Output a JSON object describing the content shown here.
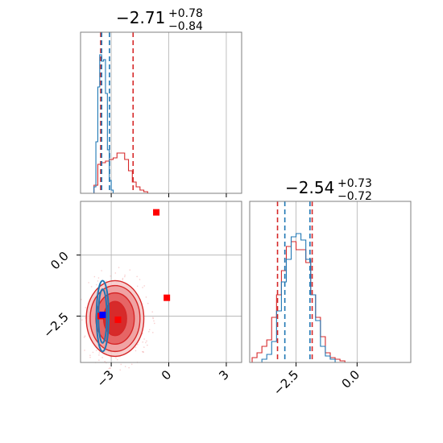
{
  "chart_data": {
    "type": "corner",
    "parameters": 2,
    "colors": {
      "red": "#d62728",
      "blue": "#1f77b4",
      "grid": "#b0b0b0",
      "truth_red": "#ff0000",
      "truth_blue": "#0000ff"
    },
    "x_ticks": {
      "p0": [
        "−3",
        "0",
        "3"
      ],
      "p1": [
        "−2.5",
        "0.0"
      ]
    },
    "y_ticks": {
      "p1": [
        "0.0",
        "−2.5"
      ]
    },
    "axis_ranges": {
      "p0": [
        -4.6,
        3.8
      ],
      "p1": [
        -4.4,
        2.2
      ]
    },
    "titles": [
      {
        "param": "p0",
        "median": "−2.71",
        "plus": "+0.78",
        "minus": "−0.84"
      },
      {
        "param": "p1",
        "median": "−2.54",
        "plus": "+0.73",
        "minus": "−0.72"
      }
    ],
    "quantile_lines": {
      "p0_red": [
        -3.55,
        -1.86
      ],
      "p0_blue": [
        -3.5,
        -3.09
      ],
      "p1_red": [
        -3.26,
        -1.84
      ],
      "p1_blue": [
        -2.96,
        -1.93
      ]
    },
    "marginal_p0": {
      "red_centers": [
        -3.8,
        -3.6,
        -3.4,
        -3.2,
        -3.0,
        -2.8,
        -2.6,
        -2.4,
        -2.2,
        -2.0,
        -1.8,
        -1.6,
        -1.4,
        -1.2
      ],
      "red_heights": [
        0.05,
        0.18,
        0.19,
        0.2,
        0.21,
        0.22,
        0.25,
        0.25,
        0.21,
        0.14,
        0.07,
        0.04,
        0.02,
        0.01
      ],
      "blue_centers": [
        -3.85,
        -3.75,
        -3.65,
        -3.55,
        -3.45,
        -3.35,
        -3.25,
        -3.15,
        -3.05,
        -2.95
      ],
      "blue_heights": [
        0.04,
        0.32,
        0.66,
        0.86,
        0.82,
        0.83,
        0.62,
        0.27,
        0.08,
        0.02
      ]
    },
    "marginal_p1": {
      "red_centers": [
        -4.2,
        -4.0,
        -3.8,
        -3.6,
        -3.4,
        -3.2,
        -3.0,
        -2.8,
        -2.6,
        -2.4,
        -2.2,
        -2.0,
        -1.8,
        -1.6,
        -1.4,
        -1.2,
        -1.0,
        -0.8,
        -0.6
      ],
      "red_heights": [
        0.03,
        0.06,
        0.1,
        0.14,
        0.28,
        0.42,
        0.57,
        0.72,
        0.75,
        0.7,
        0.7,
        0.62,
        0.42,
        0.28,
        0.16,
        0.06,
        0.03,
        0.02,
        0.01
      ],
      "blue_centers": [
        -3.8,
        -3.6,
        -3.4,
        -3.2,
        -3.0,
        -2.8,
        -2.6,
        -2.4,
        -2.2,
        -2.0,
        -1.8,
        -1.6,
        -1.4,
        -1.2,
        -1.0
      ],
      "blue_heights": [
        0.02,
        0.05,
        0.13,
        0.32,
        0.5,
        0.64,
        0.78,
        0.8,
        0.76,
        0.64,
        0.42,
        0.26,
        0.1,
        0.04,
        0.02
      ]
    },
    "joint": {
      "red_center": [
        -2.8,
        -2.6
      ],
      "red_contours": [
        [
          0.6,
          0.7
        ],
        [
          1.0,
          1.05
        ],
        [
          1.3,
          1.35
        ],
        [
          1.5,
          1.55
        ]
      ],
      "blue_center": [
        -3.45,
        -2.5
      ],
      "blue_contours": [
        [
          0.22,
          1.1
        ],
        [
          0.32,
          1.45
        ]
      ],
      "red_truth_points": [
        [
          -3.55,
          -2.5
        ],
        [
          -2.65,
          -2.65
        ],
        [
          -0.65,
          1.75
        ],
        [
          -0.1,
          -1.75
        ]
      ],
      "blue_truth_points": [
        [
          -3.45,
          -2.45
        ]
      ]
    }
  }
}
